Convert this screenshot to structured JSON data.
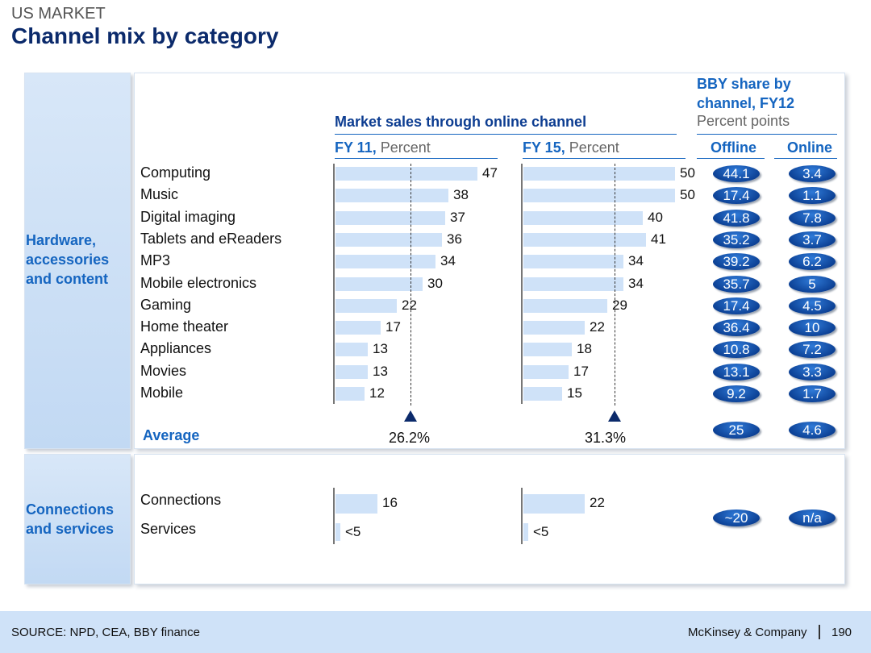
{
  "supertitle": "US MARKET",
  "title": "Channel mix by category",
  "groups": {
    "hardware": "Hardware, accessories and content",
    "connections": "Connections and services"
  },
  "headers": {
    "market": "Market sales through online channel",
    "fy11_label": "FY 11,",
    "fy15_label": "FY 15,",
    "percent": "Percent",
    "bby_title": "BBY share by channel, FY12",
    "percent_points": "Percent points",
    "offline": "Offline",
    "online": "Online"
  },
  "chart_data": {
    "type": "bar",
    "title": "Market sales through online channel",
    "series": [
      {
        "name": "FY 11, Percent",
        "categories": [
          "Computing",
          "Music",
          "Digital imaging",
          "Tablets and eReaders",
          "MP3",
          "Mobile electronics",
          "Gaming",
          "Home theater",
          "Appliances",
          "Movies",
          "Mobile",
          "Connections",
          "Services"
        ],
        "values": [
          47,
          38,
          37,
          36,
          34,
          30,
          22,
          17,
          13,
          13,
          12,
          16,
          2
        ],
        "labels": [
          "47",
          "38",
          "37",
          "36",
          "34",
          "30",
          "22",
          "17",
          "13",
          "13",
          "12",
          "16",
          "<5"
        ],
        "average": 26.2,
        "average_label": "26.2%"
      },
      {
        "name": "FY 15, Percent",
        "categories": [
          "Computing",
          "Music",
          "Digital imaging",
          "Tablets and eReaders",
          "MP3",
          "Mobile electronics",
          "Gaming",
          "Home theater",
          "Appliances",
          "Movies",
          "Mobile",
          "Connections",
          "Services"
        ],
        "values": [
          50,
          50,
          40,
          41,
          34,
          34,
          29,
          22,
          18,
          17,
          15,
          22,
          2
        ],
        "labels": [
          "50",
          "50",
          "40",
          "41",
          "34",
          "34",
          "29",
          "22",
          "18",
          "17",
          "15",
          "22",
          "<5"
        ],
        "average": 31.3,
        "average_label": "31.3%"
      }
    ],
    "bby_share": {
      "title": "BBY share by channel, FY12",
      "unit": "Percent points",
      "offline": [
        "44.1",
        "17.4",
        "41.8",
        "35.2",
        "39.2",
        "35.7",
        "17.4",
        "36.4",
        "10.8",
        "13.1",
        "9.2"
      ],
      "online": [
        "3.4",
        "1.1",
        "7.8",
        "3.7",
        "6.2",
        "5",
        "4.5",
        "10",
        "7.2",
        "3.3",
        "1.7"
      ],
      "average_offline": "25",
      "average_online": "4.6",
      "connections_offline": "~20",
      "connections_online": "n/a"
    },
    "average_label": "Average",
    "xlim": [
      0,
      55
    ]
  },
  "footer": {
    "source": "SOURCE: NPD, CEA, BBY finance",
    "brand": "McKinsey & Company",
    "page": "190"
  }
}
